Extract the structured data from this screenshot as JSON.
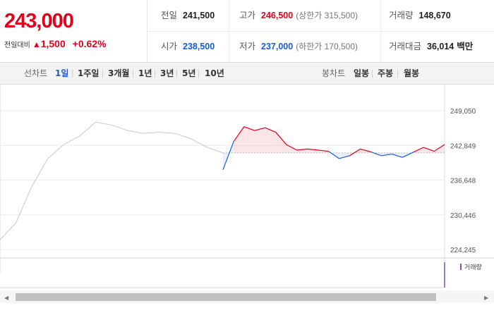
{
  "quote": {
    "price": "243,000",
    "diff_label": "전일대비",
    "diff_arrow": "▲",
    "diff_value": "1,500",
    "diff_pct": "+0.62%"
  },
  "stats": {
    "prev_close_label": "전일",
    "prev_close": "241,500",
    "high_label": "고가",
    "high": "246,500",
    "upper_limit": "(상한가 315,500)",
    "volume_label": "거래량",
    "volume": "148,670",
    "open_label": "시가",
    "open": "238,500",
    "low_label": "저가",
    "low": "237,000",
    "lower_limit": "(하한가 170,500)",
    "amount_label": "거래대금",
    "amount": "36,014",
    "amount_unit": "백만"
  },
  "period_tabs": {
    "label": "선차트",
    "items": [
      "1일",
      "1주일",
      "3개월",
      "1년",
      "3년",
      "5년",
      "10년"
    ],
    "active": "1일"
  },
  "candle_tabs": {
    "label": "봉차트",
    "items": [
      "일봉",
      "주봉",
      "월봉"
    ]
  },
  "colors": {
    "up": "#e4001b",
    "down": "#1a5cd0",
    "prev_day": "#c8c8c8"
  },
  "chart_data": {
    "type": "line",
    "y_ticks": [
      "249,050",
      "242,849",
      "236,648",
      "230,446",
      "224,245"
    ],
    "ylim": [
      224245,
      249050
    ],
    "baseline": 241500,
    "prev_day_series": [
      226000,
      229000,
      235500,
      240500,
      243000,
      244500,
      247000,
      246500,
      245500,
      245000,
      245200,
      245000,
      244000,
      242500,
      241500
    ],
    "today_series": [
      238500,
      243500,
      246200,
      245500,
      246000,
      245200,
      243000,
      242000,
      242200,
      242000,
      241800,
      240500,
      241000,
      242200,
      241700,
      241000,
      241300,
      240700,
      241600,
      242500,
      241800,
      243000
    ],
    "volume_legend": "거래량"
  }
}
